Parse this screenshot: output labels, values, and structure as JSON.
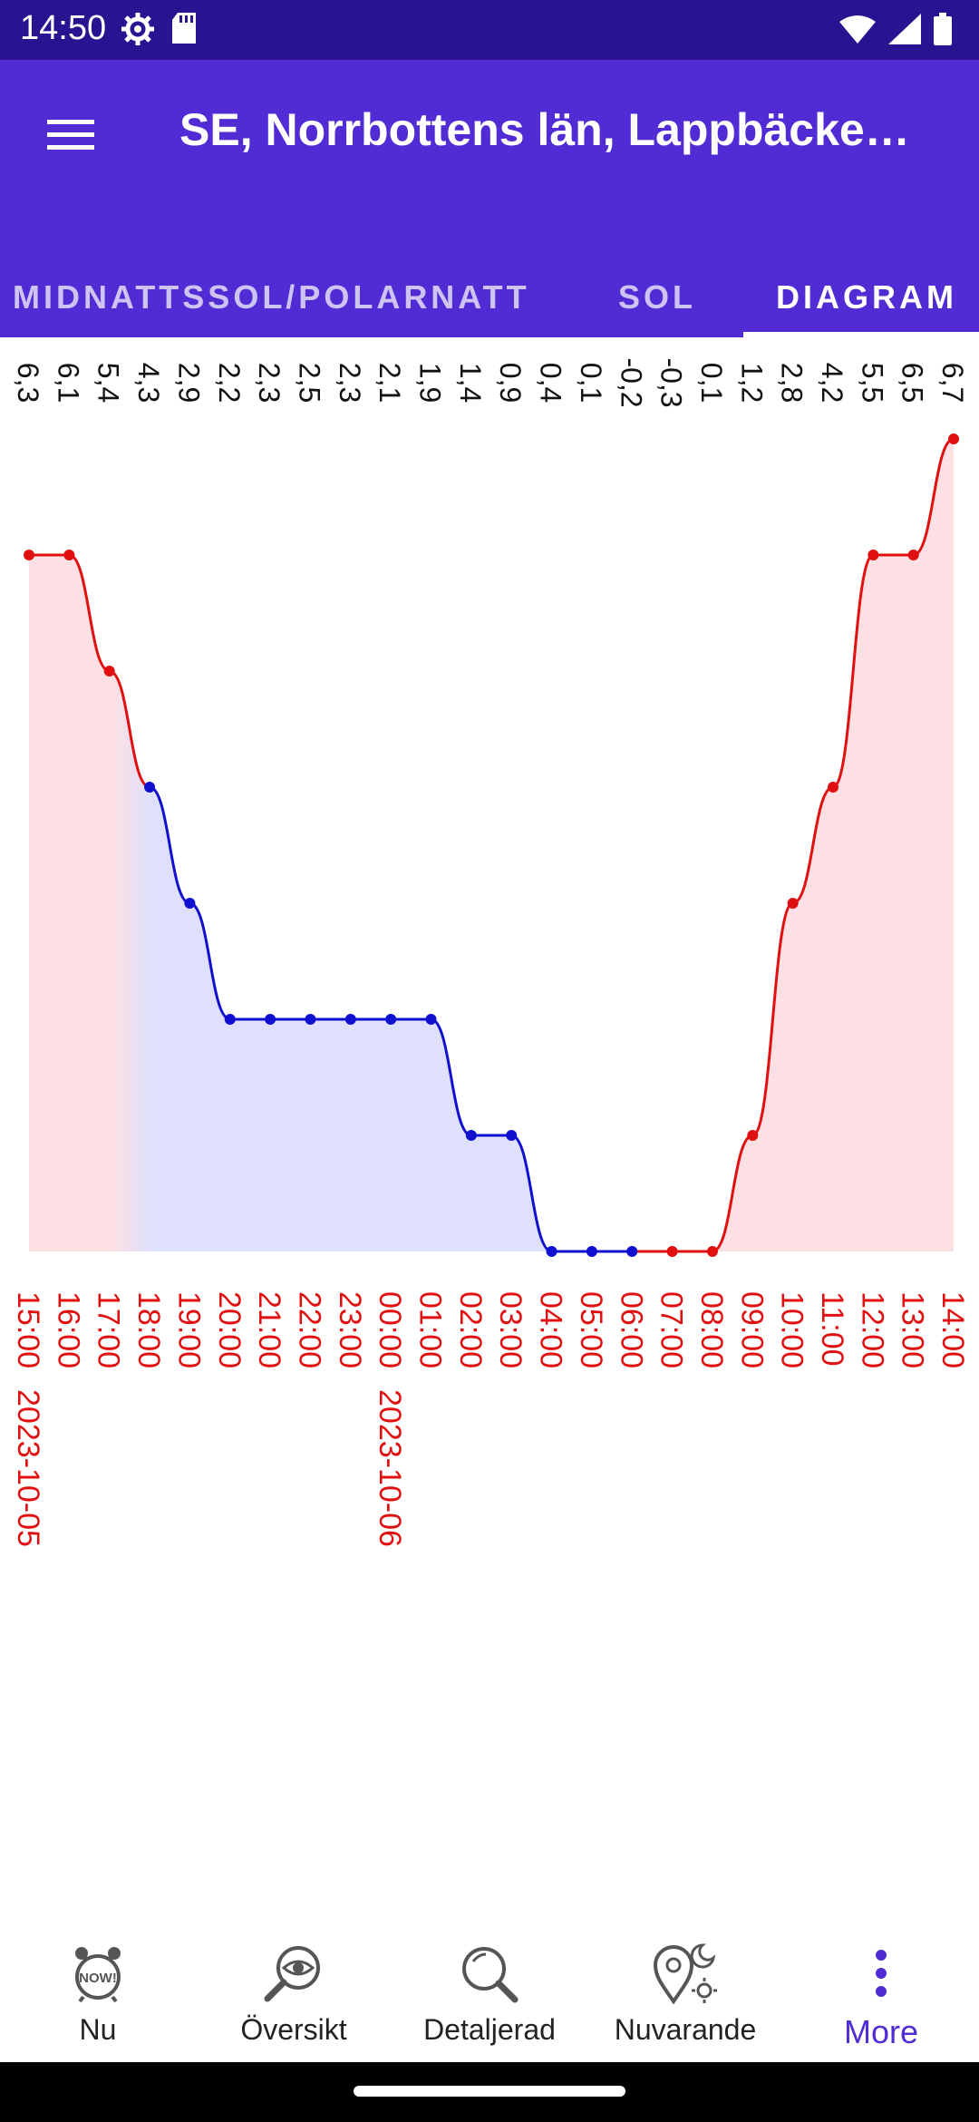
{
  "status_bar": {
    "time": "14:50",
    "left_icons": [
      "settings-icon",
      "sd-card-icon"
    ],
    "right_icons": [
      "wifi-icon",
      "signal-icon",
      "battery-icon"
    ]
  },
  "app_bar": {
    "menu_icon": "hamburger-menu-icon",
    "title": "SE, Norrbottens län, Lappbäcke…"
  },
  "tabs": [
    {
      "label": "MIDNATTSSOL/POLARNATT",
      "active": false
    },
    {
      "label": "SOL",
      "active": false
    },
    {
      "label": "DIAGRAM",
      "active": true
    }
  ],
  "colors": {
    "status_bar": "#2a1390",
    "app_bar": "#512bd4",
    "day_line": "#e01010",
    "day_fill": "#fde0e4",
    "night_line": "#1010d0",
    "night_fill": "#dfe0fb",
    "time_label": "#e01010",
    "active_nav": "#512bd4"
  },
  "chart_data": {
    "type": "line",
    "x": [
      "15:00",
      "16:00",
      "17:00",
      "18:00",
      "19:00",
      "20:00",
      "21:00",
      "22:00",
      "23:00",
      "00:00",
      "01:00",
      "02:00",
      "03:00",
      "04:00",
      "05:00",
      "06:00",
      "07:00",
      "08:00",
      "09:00",
      "10:00",
      "11:00",
      "12:00",
      "13:00",
      "14:00"
    ],
    "date_labels": [
      {
        "at": "15:00",
        "text": "2023-10-05"
      },
      {
        "at": "00:00",
        "text": "2023-10-06"
      }
    ],
    "value_labels": [
      "6,3",
      "6,1",
      "5,4",
      "4,3",
      "2,9",
      "2,2",
      "2,3",
      "2,5",
      "2,3",
      "2,1",
      "1,9",
      "1,4",
      "0,9",
      "0,4",
      "0,1",
      "-0,2",
      "-0,3",
      "0,1",
      "1,2",
      "2,8",
      "4,2",
      "5,5",
      "6,5",
      "6,7"
    ],
    "levels": [
      8,
      8,
      7,
      6,
      5,
      4,
      4,
      4,
      4,
      4,
      4,
      3,
      3,
      2,
      2,
      2,
      2,
      2,
      3,
      5,
      6,
      8,
      8,
      9
    ],
    "level_range": [
      2,
      9
    ],
    "period": [
      "day",
      "day",
      "day",
      "night",
      "night",
      "night",
      "night",
      "night",
      "night",
      "night",
      "night",
      "night",
      "night",
      "night",
      "night",
      "night",
      "day",
      "day",
      "day",
      "day",
      "day",
      "day",
      "day",
      "day"
    ]
  },
  "bottom_nav": [
    {
      "label": "Nu",
      "icon": "alarm-clock-now-icon",
      "active": false
    },
    {
      "label": "Översikt",
      "icon": "magnifier-eye-icon",
      "active": false
    },
    {
      "label": "Detaljerad",
      "icon": "magnifier-icon",
      "active": false
    },
    {
      "label": "Nuvarande",
      "icon": "location-moon-sun-icon",
      "active": false
    },
    {
      "label": "More",
      "icon": "more-vertical-icon",
      "active": true
    }
  ]
}
